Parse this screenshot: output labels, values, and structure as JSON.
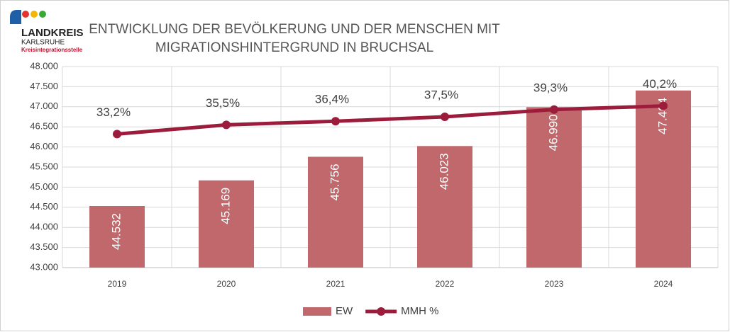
{
  "logo": {
    "name": "LANDKREIS",
    "sub": "KARLSRUHE",
    "unit": "Kreisintegrationsstelle"
  },
  "chart_data": {
    "type": "bar-line",
    "title": [
      "ENTWICKLUNG DER BEVÖLKERUNG UND DER MENSCHEN MIT",
      "MIGRATIONSHINTERGRUND IN BRUCHSAL"
    ],
    "categories": [
      "2019",
      "2020",
      "2021",
      "2022",
      "2023",
      "2024"
    ],
    "series": [
      {
        "name": "EW",
        "type": "bar",
        "color": "#c0686b",
        "values": [
          44532,
          45169,
          45756,
          46023,
          46990,
          47404
        ],
        "value_labels": [
          "44.532",
          "45.169",
          "45.756",
          "46.023",
          "46.990",
          "47.404"
        ]
      },
      {
        "name": "MMH %",
        "type": "line",
        "axis": "y2",
        "color": "#9c1c3c",
        "values": [
          33.2,
          35.5,
          36.4,
          37.5,
          39.3,
          40.2
        ],
        "value_labels": [
          "33,2%",
          "35,5%",
          "36,4%",
          "37,5%",
          "39,3%",
          "40,2%"
        ]
      }
    ],
    "ylim": [
      43000,
      48000
    ],
    "yticks": [
      {
        "value": 43000,
        "label": "43.000"
      },
      {
        "value": 43500,
        "label": "43.500"
      },
      {
        "value": 44000,
        "label": "44.000"
      },
      {
        "value": 44500,
        "label": "44.500"
      },
      {
        "value": 45000,
        "label": "45.000"
      },
      {
        "value": 45500,
        "label": "45.500"
      },
      {
        "value": 46000,
        "label": "46.000"
      },
      {
        "value": 46500,
        "label": "46.500"
      },
      {
        "value": 47000,
        "label": "47.000"
      },
      {
        "value": 47500,
        "label": "47.500"
      },
      {
        "value": 48000,
        "label": "48.000"
      }
    ],
    "y2lim": [
      0,
      50
    ],
    "grid": true,
    "legend": "bottom"
  }
}
